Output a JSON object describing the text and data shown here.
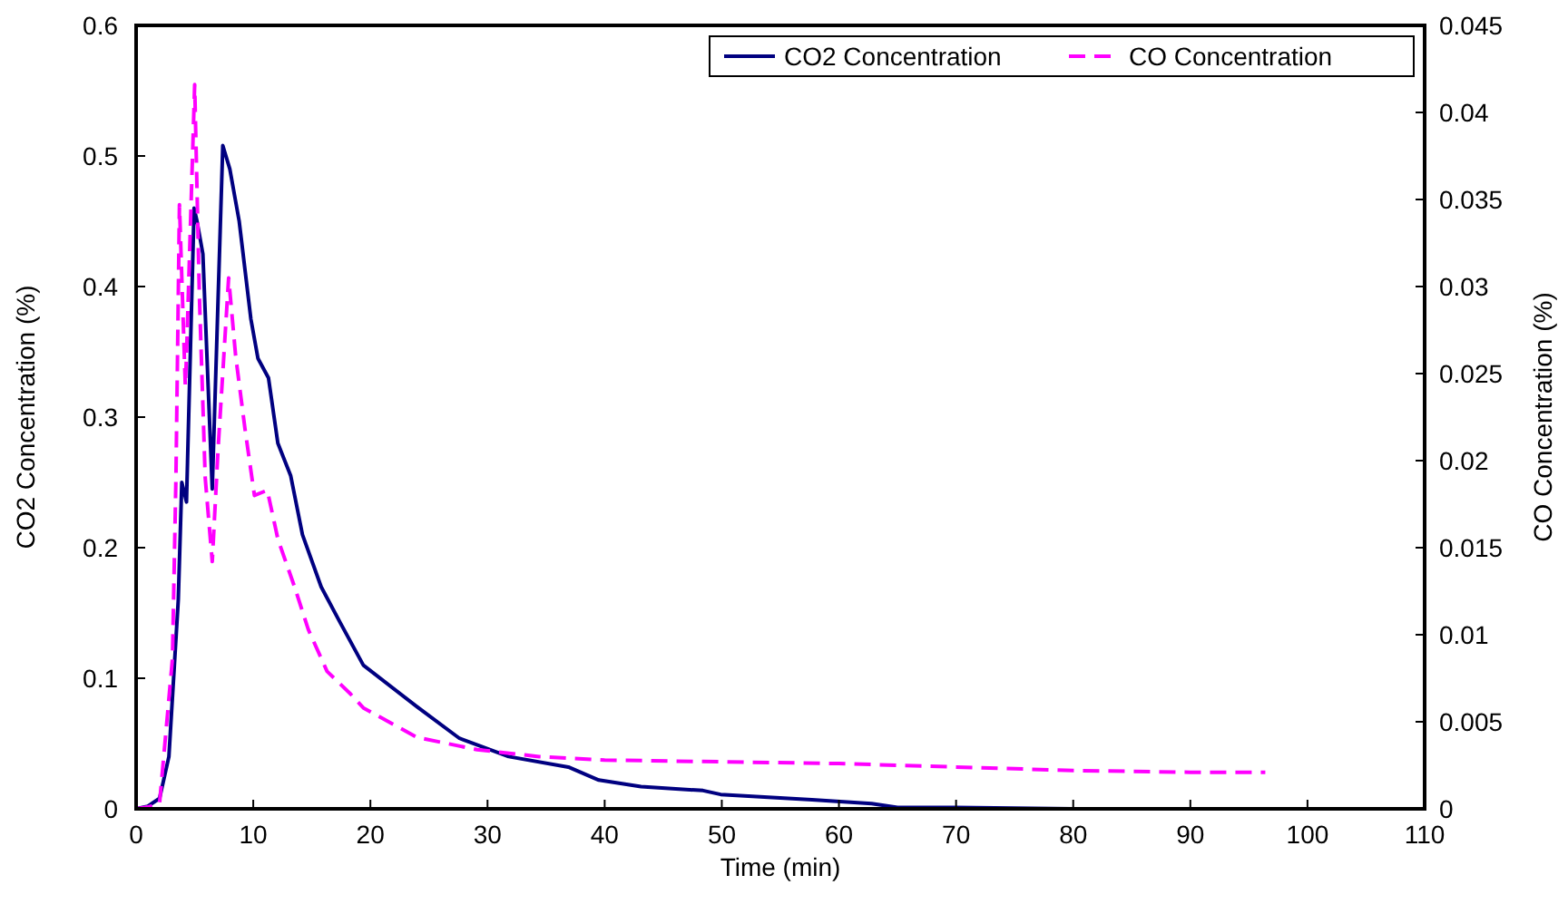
{
  "chart_data": {
    "type": "line",
    "xlabel": "Time (min)",
    "ylabel": "CO2 Concentration (%)",
    "y2label": "CO Concentration (%)",
    "xlim": [
      0,
      110
    ],
    "xticks": [
      0,
      10,
      20,
      30,
      40,
      50,
      60,
      70,
      80,
      90,
      100,
      110
    ],
    "ylim": [
      0,
      0.6
    ],
    "yticks": [
      0,
      0.1,
      0.2,
      0.3,
      0.4,
      0.5,
      0.6
    ],
    "y2lim": [
      0,
      0.045
    ],
    "y2ticks": [
      0,
      0.005,
      0.01,
      0.015,
      0.02,
      0.025,
      0.03,
      0.035,
      0.04,
      0.045
    ],
    "legend": "top right",
    "grid": false,
    "marker": "none",
    "series": [
      {
        "name": "CO2 Concentration",
        "color": "#000080",
        "line_style": "solid",
        "x": [
          0,
          1,
          2,
          2.3,
          2.8,
          3.6,
          3.9,
          4.3,
          4.95,
          5.2,
          5.7,
          6.5,
          7.4,
          8.0,
          8.8,
          9.8,
          10.4,
          11.3,
          12.1,
          13.2,
          14.2,
          15.8,
          17.4,
          19.4,
          24,
          27.6,
          31.8,
          36.9,
          39.5,
          43.1,
          48.4,
          49.9,
          57.7,
          62.8,
          65,
          70,
          80
        ],
        "values": [
          0,
          0.002,
          0.008,
          0.02,
          0.04,
          0.16,
          0.25,
          0.235,
          0.46,
          0.45,
          0.425,
          0.245,
          0.508,
          0.49,
          0.45,
          0.375,
          0.345,
          0.33,
          0.28,
          0.255,
          0.21,
          0.17,
          0.143,
          0.11,
          0.078,
          0.054,
          0.04,
          0.032,
          0.022,
          0.017,
          0.014,
          0.011,
          0.007,
          0.004,
          0.001,
          0.001,
          0
        ]
      },
      {
        "name": "CO Concentration",
        "color": "#ff00ff",
        "line_style": "dashed",
        "axis": "y2",
        "x": [
          0,
          1,
          2,
          3.1,
          3.4,
          3.7,
          4.2,
          4.3,
          5.0,
          5.4,
          5.9,
          6.5,
          7.0,
          7.9,
          8.5,
          9.3,
          10.1,
          11.2,
          12.1,
          13.5,
          14.7,
          16.3,
          18.3,
          19.4,
          24,
          29.1,
          34.4,
          40,
          50,
          60,
          70,
          80,
          90,
          96.4
        ],
        "values": [
          0,
          0.0001,
          0.0003,
          0.0086,
          0.019,
          0.0347,
          0.0243,
          0.026,
          0.0416,
          0.0295,
          0.019,
          0.0142,
          0.0207,
          0.0305,
          0.026,
          0.0218,
          0.018,
          0.0183,
          0.0155,
          0.0128,
          0.0103,
          0.0079,
          0.0066,
          0.0058,
          0.0041,
          0.0034,
          0.003,
          0.0028,
          0.0027,
          0.0026,
          0.0024,
          0.0022,
          0.0021,
          0.0021
        ]
      }
    ]
  }
}
